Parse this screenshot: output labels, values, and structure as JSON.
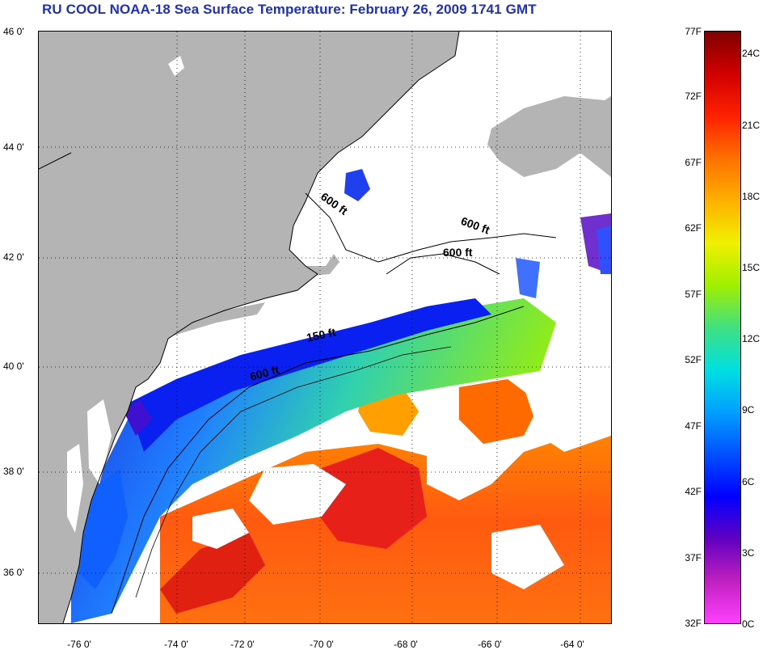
{
  "title": "RU COOL  NOAA-18  Sea Surface Temperature:  February 26, 2009 1741 GMT",
  "map": {
    "lat_labels": [
      "46 0'",
      "44 0'",
      "42 0'",
      "40 0'",
      "38 0'",
      "36 0'"
    ],
    "lon_labels": [
      "-76 0'",
      "-74 0'",
      "-72 0'",
      "-70 0'",
      "-68 0'",
      "-66 0'",
      "-64 0'"
    ],
    "depth_labels": [
      "600 ft",
      "600 ft",
      "600 ft",
      "150 ft",
      "600 ft"
    ],
    "colors": {
      "land": "#b4b4b4",
      "cloud": "#ffffff",
      "grid": "#000000"
    }
  },
  "colorbar": {
    "fahrenheit": [
      "77F",
      "72F",
      "67F",
      "62F",
      "57F",
      "52F",
      "47F",
      "42F",
      "37F",
      "32F"
    ],
    "celsius": [
      "24C",
      "21C",
      "18C",
      "15C",
      "12C",
      "9C",
      "6C",
      "3C",
      "0C"
    ],
    "gradient": [
      "#800000",
      "#d00000",
      "#ff2000",
      "#ff7000",
      "#ffb000",
      "#f0f000",
      "#a0f000",
      "#40e080",
      "#00e0e0",
      "#00a0ff",
      "#0050ff",
      "#0000ff",
      "#6000c0",
      "#c020c0",
      "#ff40ff"
    ]
  }
}
